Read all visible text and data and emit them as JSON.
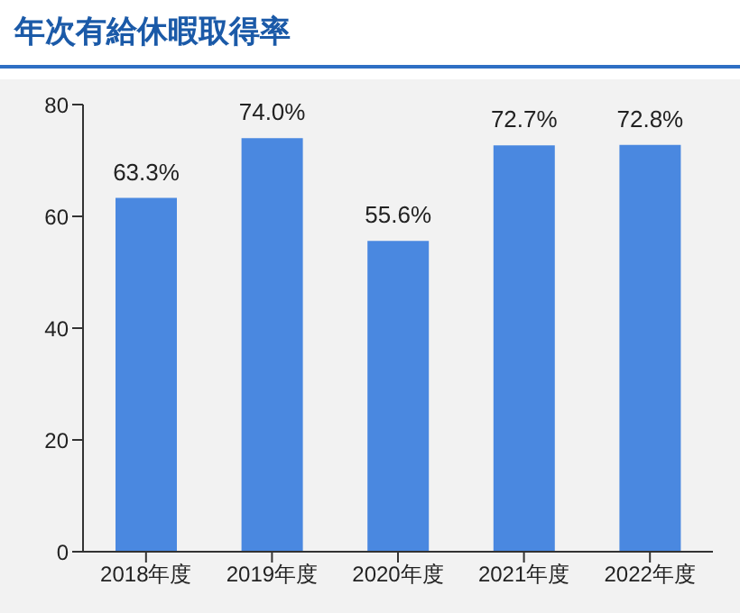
{
  "chart_data": {
    "type": "bar",
    "title": "年次有給休暇取得率",
    "categories": [
      "2018年度",
      "2019年度",
      "2020年度",
      "2021年度",
      "2022年度"
    ],
    "values": [
      63.3,
      74.0,
      55.6,
      72.7,
      72.8
    ],
    "value_labels": [
      "63.3%",
      "74.0%",
      "55.6%",
      "72.7%",
      "72.8%"
    ],
    "color": "#4a88e0",
    "ylim": [
      0,
      80
    ],
    "yticks": [
      0,
      20,
      40,
      60,
      80
    ]
  }
}
